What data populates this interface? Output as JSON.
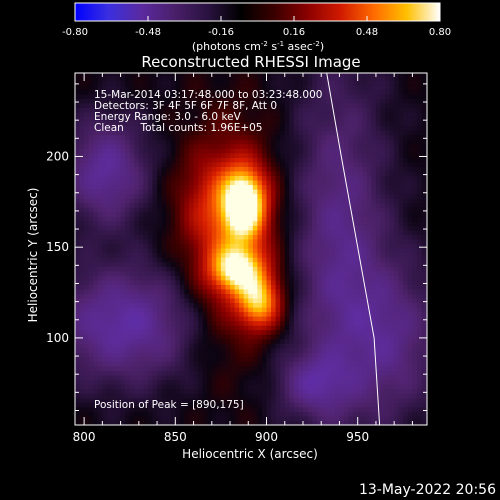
{
  "chart_data": {
    "type": "heatmap",
    "title": "Reconstructed RHESSI Image",
    "xlabel": "Heliocentric X (arcsec)",
    "ylabel": "Heliocentric Y (arcsec)",
    "xlim": [
      795,
      988
    ],
    "ylim": [
      52,
      246
    ],
    "x_ticks": [
      800,
      850,
      900,
      950
    ],
    "y_ticks": [
      100,
      150,
      200
    ],
    "colorbar": {
      "range": [
        -0.8,
        0.8
      ],
      "tick_labels": [
        "-0.80",
        "-0.48",
        "-0.16",
        "0.16",
        "0.48",
        "0.80"
      ],
      "unit_parts": [
        "(photons cm",
        "-2",
        " s",
        "-1",
        " asec",
        "-2",
        ")"
      ],
      "colors": [
        "#0000ff",
        "#3a2fe0",
        "#5a2aa0",
        "#4a1f6a",
        "#2a1240",
        "#000000",
        "#3a0000",
        "#8a0000",
        "#d01a00",
        "#ff6a00",
        "#ffc000",
        "#ffffff"
      ]
    },
    "annotations": [
      "15-Mar-2014 03:17:48.000 to 03:23:48.000",
      "Detectors: 3F 4F 5F 6F 7F 8F, Att 0",
      "Energy Range: 3.0 - 6.0 keV",
      "Clean     Total counts: 1.96E+05"
    ],
    "peak_label": "Position of Peak = [890,175]",
    "peak": [
      890,
      175
    ],
    "sources": [
      {
        "x": 888,
        "y": 174,
        "sx": 8,
        "sy": 13,
        "amp": 1.0
      },
      {
        "x": 884,
        "y": 138,
        "sx": 10,
        "sy": 9,
        "amp": 0.78
      },
      {
        "x": 896,
        "y": 120,
        "sx": 8,
        "sy": 10,
        "amp": 0.72
      },
      {
        "x": 880,
        "y": 155,
        "sx": 18,
        "sy": 40,
        "amp": 0.38
      },
      {
        "x": 873,
        "y": 176,
        "sx": 14,
        "sy": 18,
        "amp": 0.22
      }
    ],
    "negative_lobes": [
      {
        "x": 822,
        "y": 108,
        "sx": 28,
        "sy": 22,
        "amp": -0.45
      },
      {
        "x": 812,
        "y": 192,
        "sx": 16,
        "sy": 20,
        "amp": -0.42
      },
      {
        "x": 940,
        "y": 150,
        "sx": 18,
        "sy": 70,
        "amp": -0.35
      },
      {
        "x": 970,
        "y": 100,
        "sx": 18,
        "sy": 30,
        "amp": -0.3
      },
      {
        "x": 925,
        "y": 75,
        "sx": 14,
        "sy": 12,
        "amp": -0.3
      }
    ],
    "limb_curve": {
      "x": [
        962,
        959,
        950,
        941,
        933
      ],
      "y": [
        52,
        100,
        150,
        200,
        246
      ]
    }
  },
  "footer": {
    "timestamp": "13-May-2022 20:56"
  }
}
